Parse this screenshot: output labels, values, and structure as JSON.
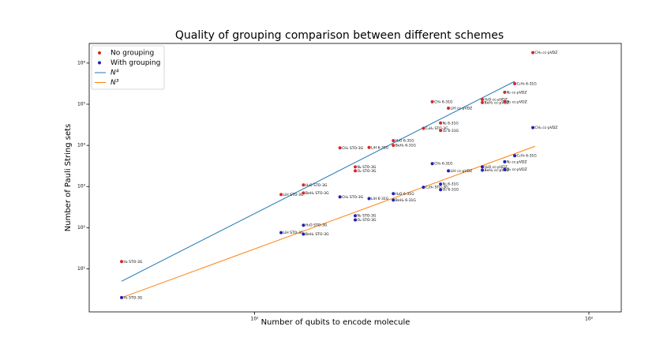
{
  "chart_data": {
    "type": "scatter",
    "title": "Quality of grouping comparison between different schemes",
    "xlabel": "Number of qubits to encode molecule",
    "ylabel": "Number of Pauli String sets",
    "log_x": true,
    "log_y": true,
    "legend": "upper left",
    "xlim": [
      3.2,
      125
    ],
    "ylim": [
      0.9,
      3000000
    ],
    "xticks": [
      {
        "value": 10,
        "label": "10¹"
      },
      {
        "value": 100,
        "label": "10²"
      }
    ],
    "yticks": [
      {
        "value": 10,
        "label": "10¹"
      },
      {
        "value": 100,
        "label": "10²"
      },
      {
        "value": 1000,
        "label": "10³"
      },
      {
        "value": 10000,
        "label": "10⁴"
      },
      {
        "value": 100000,
        "label": "10⁵"
      },
      {
        "value": 1000000,
        "label": "10⁶"
      }
    ],
    "labels": [
      "H₂ STO-3G",
      "LiH STO-3G",
      "H₂O STO-3G",
      "BeH₂ STO-3G",
      "CH₄ STO-3G",
      "N₂ STO-3G",
      "O₂ STO-3G",
      "LiH 6-31G",
      "H₂O 6-31G",
      "BeH₂ 6-31G",
      "C₂H₄ STO-3G",
      "CH₄ 6-31G",
      "N₂ 6-31G",
      "O₂ 6-31G",
      "LiH cc-pVDZ",
      "H₂O cc-pVDZ",
      "BeH₂ cc-pVDZ",
      "N₂ cc-pVDZ",
      "O₂ cc-pVDZ",
      "C₂H₄ 6-31G",
      "CH₄ cc-pVDZ"
    ],
    "x": [
      4,
      12,
      14,
      14,
      18,
      20,
      20,
      22,
      26,
      26,
      32,
      34,
      36,
      36,
      38,
      48,
      48,
      56,
      56,
      60,
      68
    ],
    "series": [
      {
        "name": "No grouping",
        "color": "#d62728",
        "values": [
          15,
          640,
          1090,
          700,
          8700,
          3000,
          2400,
          8900,
          13000,
          10000,
          26000,
          115000,
          35000,
          23000,
          80000,
          130000,
          110000,
          195000,
          115000,
          315000,
          1800000
        ]
      },
      {
        "name": "With grouping",
        "color": "#1f1fb4",
        "values": [
          2,
          76,
          115,
          70,
          560,
          195,
          155,
          510,
          670,
          470,
          960,
          3600,
          1150,
          840,
          2400,
          3000,
          2500,
          4000,
          2600,
          5600,
          27000
        ]
      }
    ],
    "lines": [
      {
        "name": "N⁴",
        "color": "#1f77b4",
        "x": [
          4,
          60
        ],
        "values": [
          5,
          360000
        ]
      },
      {
        "name": "N³",
        "color": "#ff7f0e",
        "x": [
          4,
          69
        ],
        "values": [
          2,
          9500
        ]
      }
    ]
  }
}
